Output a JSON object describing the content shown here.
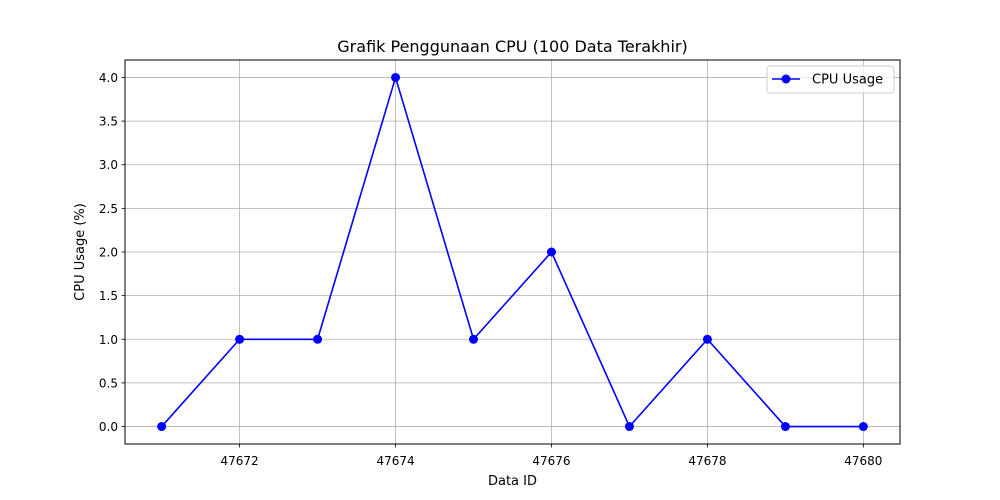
{
  "chart_data": {
    "type": "line",
    "title": "Grafik Penggunaan CPU (100 Data Terakhir)",
    "xlabel": "Data ID",
    "ylabel": "CPU Usage (%)",
    "x": [
      47671,
      47672,
      47673,
      47674,
      47675,
      47676,
      47677,
      47678,
      47679,
      47680
    ],
    "series": [
      {
        "name": "CPU Usage",
        "values": [
          0.0,
          1.0,
          1.0,
          4.0,
          1.0,
          2.0,
          0.0,
          1.0,
          0.0,
          0.0
        ],
        "color": "#0000ff",
        "marker": "circle"
      }
    ],
    "xlim": [
      47670.53,
      47680.47
    ],
    "ylim": [
      -0.2,
      4.2
    ],
    "xticks": [
      47672,
      47674,
      47676,
      47678,
      47680
    ],
    "xtick_labels": [
      "47672",
      "47674",
      "47676",
      "47678",
      "47680"
    ],
    "yticks": [
      0.0,
      0.5,
      1.0,
      1.5,
      2.0,
      2.5,
      3.0,
      3.5,
      4.0
    ],
    "ytick_labels": [
      "0.0",
      "0.5",
      "1.0",
      "1.5",
      "2.0",
      "2.5",
      "3.0",
      "3.5",
      "4.0"
    ],
    "grid": true,
    "grid_color": "#b0b0b0",
    "legend_position": "upper-right"
  }
}
